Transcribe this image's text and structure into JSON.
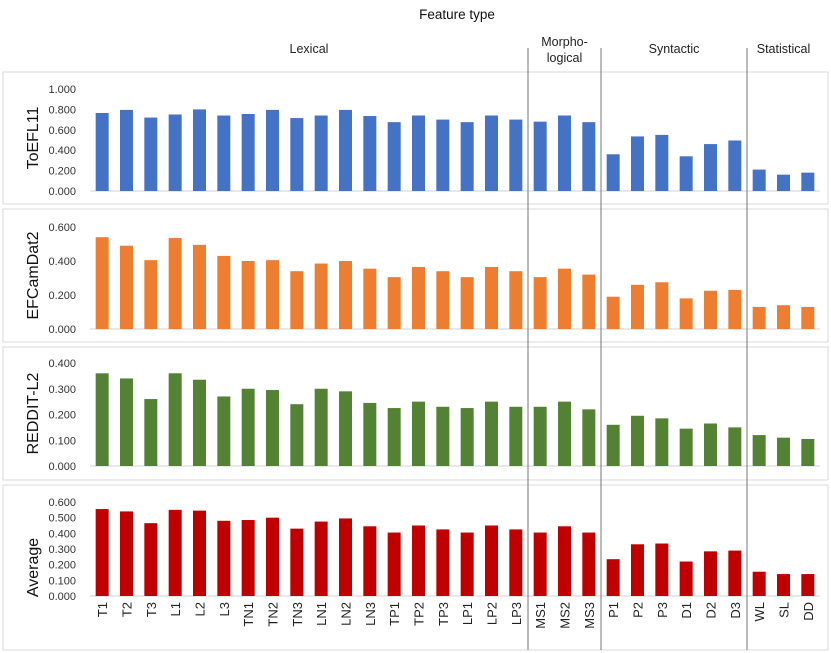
{
  "chart_data": {
    "type": "bar",
    "title": "Feature type",
    "groups": [
      {
        "label_lines": [
          "Lexical"
        ],
        "start": 0,
        "end": 17
      },
      {
        "label_lines": [
          "Morpho-",
          "logical"
        ],
        "start": 18,
        "end": 20
      },
      {
        "label_lines": [
          "Syntactic"
        ],
        "start": 21,
        "end": 26
      },
      {
        "label_lines": [
          "Statistical"
        ],
        "start": 27,
        "end": 29
      }
    ],
    "categories": [
      "T1",
      "T2",
      "T3",
      "L1",
      "L2",
      "L3",
      "TN1",
      "TN2",
      "TN3",
      "LN1",
      "LN2",
      "LN3",
      "TP1",
      "TP2",
      "TP3",
      "LP1",
      "LP2",
      "LP3",
      "MS1",
      "MS2",
      "MS3",
      "P1",
      "P2",
      "P3",
      "D1",
      "D2",
      "D3",
      "WL",
      "SL",
      "DD"
    ],
    "panels": [
      {
        "name": "ToEFL11",
        "color": "#4472C4",
        "ylim": [
          0,
          1.0
        ],
        "yticks": [
          "0.000",
          "0.200",
          "0.400",
          "0.600",
          "0.800",
          "1.000"
        ],
        "values": [
          0.765,
          0.795,
          0.72,
          0.75,
          0.8,
          0.74,
          0.755,
          0.795,
          0.715,
          0.74,
          0.795,
          0.735,
          0.675,
          0.74,
          0.7,
          0.675,
          0.74,
          0.7,
          0.68,
          0.74,
          0.675,
          0.36,
          0.535,
          0.55,
          0.34,
          0.46,
          0.495,
          0.21,
          0.16,
          0.18
        ]
      },
      {
        "name": "EFCamDat2",
        "color": "#ED7D31",
        "ylim": [
          0,
          0.6
        ],
        "yticks": [
          "0.000",
          "0.200",
          "0.400",
          "0.600"
        ],
        "values": [
          0.54,
          0.49,
          0.405,
          0.535,
          0.495,
          0.43,
          0.4,
          0.405,
          0.34,
          0.385,
          0.4,
          0.355,
          0.305,
          0.365,
          0.34,
          0.305,
          0.365,
          0.34,
          0.305,
          0.355,
          0.32,
          0.19,
          0.26,
          0.275,
          0.18,
          0.225,
          0.23,
          0.13,
          0.14,
          0.13
        ]
      },
      {
        "name": "REDDIT-L2",
        "color": "#548235",
        "ylim": [
          0,
          0.4
        ],
        "yticks": [
          "0.000",
          "0.100",
          "0.200",
          "0.300",
          "0.400"
        ],
        "values": [
          0.36,
          0.34,
          0.26,
          0.36,
          0.335,
          0.27,
          0.3,
          0.295,
          0.24,
          0.3,
          0.29,
          0.245,
          0.225,
          0.25,
          0.23,
          0.225,
          0.25,
          0.23,
          0.23,
          0.25,
          0.22,
          0.16,
          0.195,
          0.185,
          0.145,
          0.165,
          0.15,
          0.12,
          0.11,
          0.105
        ]
      },
      {
        "name": "Average",
        "color": "#C00000",
        "ylim": [
          0,
          0.6
        ],
        "yticks": [
          "0.000",
          "0.100",
          "0.200",
          "0.300",
          "0.400",
          "0.500",
          "0.600"
        ],
        "values": [
          0.555,
          0.54,
          0.465,
          0.55,
          0.545,
          0.48,
          0.485,
          0.5,
          0.43,
          0.475,
          0.495,
          0.445,
          0.405,
          0.45,
          0.425,
          0.405,
          0.45,
          0.425,
          0.405,
          0.445,
          0.405,
          0.235,
          0.33,
          0.335,
          0.22,
          0.285,
          0.29,
          0.155,
          0.14,
          0.14
        ]
      }
    ]
  }
}
